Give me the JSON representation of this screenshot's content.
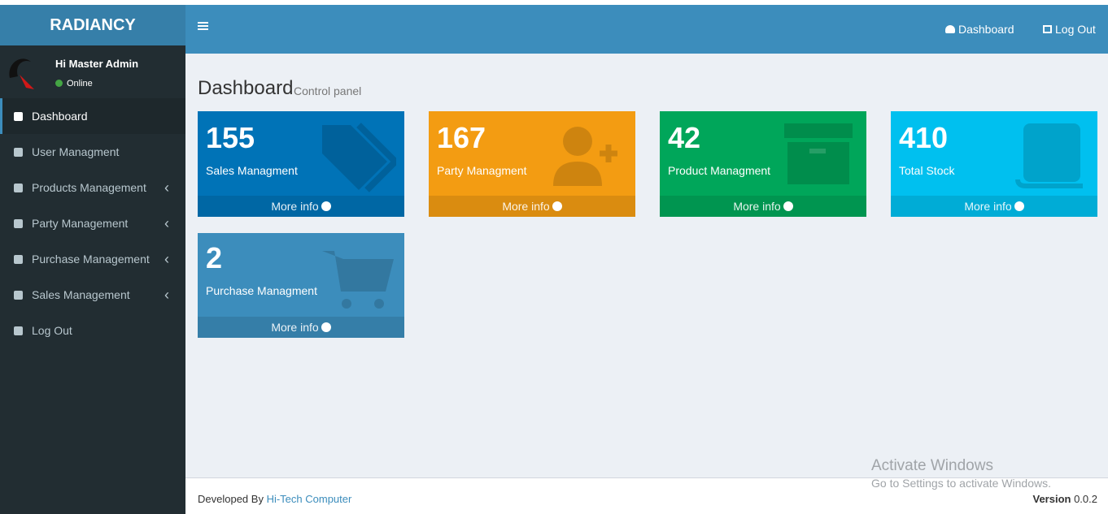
{
  "brand": "RADIANCY",
  "header": {
    "nav": [
      "Dashboard",
      "Log Out"
    ]
  },
  "user": {
    "greeting": "Hi Master Admin",
    "status": "Online"
  },
  "sidebar": {
    "items": [
      "Dashboard",
      "User Managment",
      "Products Management",
      "Party Management",
      "Purchase Management",
      "Sales Management",
      "Log Out"
    ]
  },
  "page": {
    "title": "Dashboard",
    "subtitle": "Control panel"
  },
  "boxes": [
    {
      "value": 155,
      "label": "Sales Managment",
      "link": "More info"
    },
    {
      "value": 167,
      "label": "Party Managment",
      "link": "More info"
    },
    {
      "value": 42,
      "label": "Product Managment",
      "link": "More info"
    },
    {
      "value": 410,
      "label": "Total Stock",
      "link": "More info"
    },
    {
      "value": 2,
      "label": "Purchase Managment",
      "link": "More info"
    }
  ],
  "footer": {
    "developed_by": "Developed By",
    "company": "Hi-Tech Computer",
    "version_label": "Version",
    "version": "0.0.2"
  },
  "watermark": {
    "title": "Activate Windows",
    "text": "Go to Settings to activate Windows."
  }
}
